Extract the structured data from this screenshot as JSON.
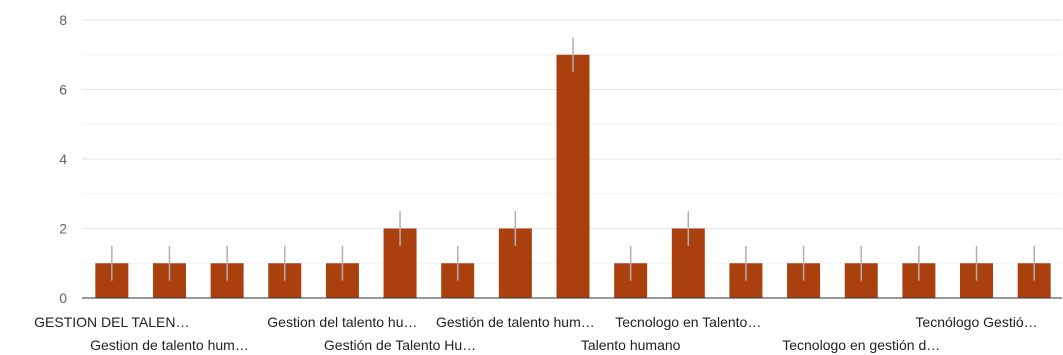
{
  "chart_data": {
    "type": "bar",
    "categories": [
      "GESTION DEL TALEN…",
      "Gestion de talento hum…",
      "",
      "",
      "Gestion del talento hu…",
      "Gestión de Talento Hu…",
      "",
      "Gestión de talento hum…",
      "",
      "Talento humano",
      "Tecnologo en Talento…",
      "",
      "",
      "Tecnologo en gestión d…",
      "",
      "Tecnólogo Gestió…",
      ""
    ],
    "values": [
      1,
      1,
      1,
      1,
      1,
      2,
      1,
      2,
      7,
      1,
      2,
      1,
      1,
      1,
      1,
      1,
      1
    ],
    "title": "",
    "xlabel": "",
    "ylabel": "",
    "ylim": [
      0,
      8
    ],
    "yticks": [
      "0",
      "2",
      "4",
      "6",
      "8"
    ],
    "grid": true,
    "bar_color": "#a9400d",
    "error_bar_color": "#b0b0b0"
  }
}
